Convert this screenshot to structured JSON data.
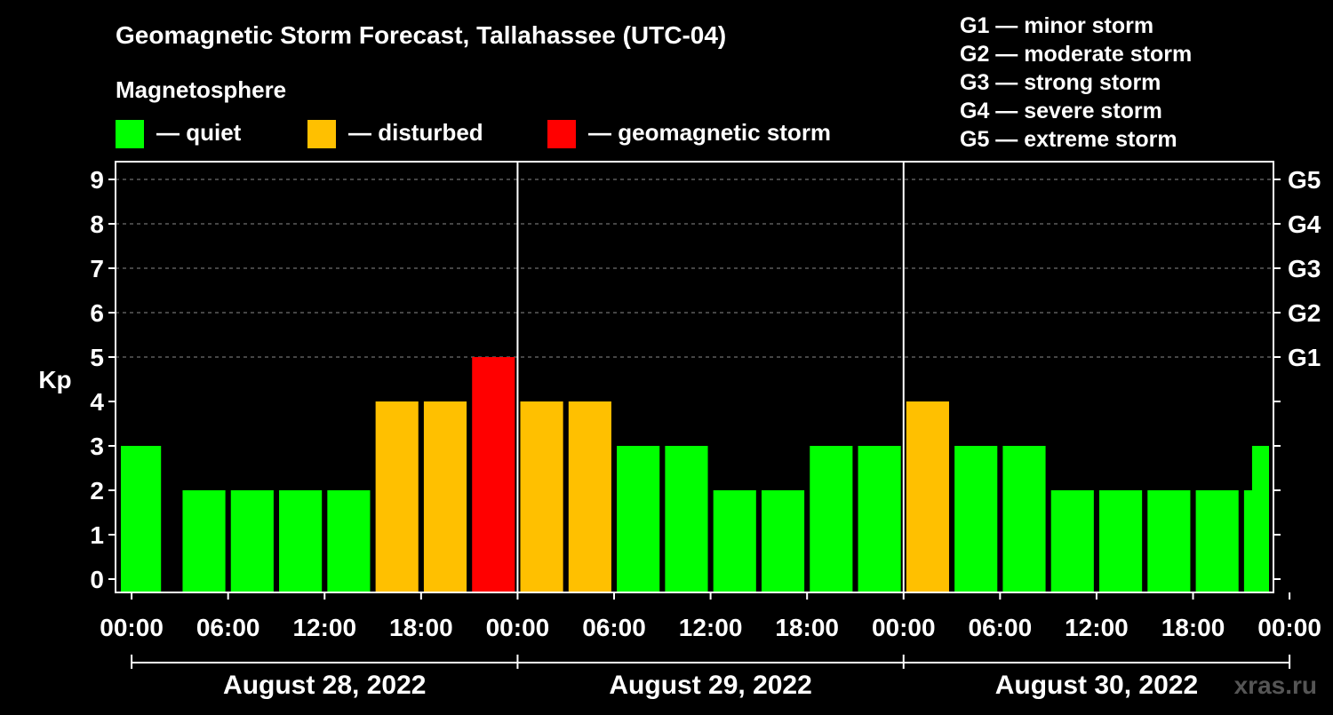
{
  "title": "Geomagnetic Storm Forecast, Tallahassee (UTC-04)",
  "legend": {
    "heading": "Magnetosphere",
    "items": [
      {
        "label": "— quiet",
        "color": "#00FF00"
      },
      {
        "label": "— disturbed",
        "color": "#FFC000"
      },
      {
        "label": "— geomagnetic storm",
        "color": "#FF0000"
      }
    ],
    "g_scale": [
      "G1 — minor storm",
      "G2 — moderate storm",
      "G3 — strong storm",
      "G4 — severe storm",
      "G5 — extreme storm"
    ]
  },
  "watermark": "xras.ru",
  "chart_data": {
    "type": "bar",
    "title": "Geomagnetic Storm Forecast, Tallahassee (UTC-04)",
    "ylabel": "Kp",
    "xlabel": "",
    "ylim": [
      0,
      9
    ],
    "x_range_hours": [
      -1,
      71
    ],
    "bar_width_hours": 2.66,
    "yticks": [
      "0",
      "1",
      "2",
      "3",
      "4",
      "5",
      "6",
      "7",
      "8",
      "9"
    ],
    "right_ticks": [
      {
        "kp": 5,
        "label": "G1"
      },
      {
        "kp": 6,
        "label": "G2"
      },
      {
        "kp": 7,
        "label": "G3"
      },
      {
        "kp": 8,
        "label": "G4"
      },
      {
        "kp": 9,
        "label": "G5"
      }
    ],
    "xticks": [
      {
        "hour": 0,
        "label": "00:00"
      },
      {
        "hour": 6,
        "label": "06:00"
      },
      {
        "hour": 12,
        "label": "12:00"
      },
      {
        "hour": 18,
        "label": "18:00"
      },
      {
        "hour": 24,
        "label": "00:00"
      },
      {
        "hour": 30,
        "label": "06:00"
      },
      {
        "hour": 36,
        "label": "12:00"
      },
      {
        "hour": 42,
        "label": "18:00"
      },
      {
        "hour": 48,
        "label": "00:00"
      },
      {
        "hour": 54,
        "label": "06:00"
      },
      {
        "hour": 60,
        "label": "12:00"
      },
      {
        "hour": 66,
        "label": "18:00"
      },
      {
        "hour": 72,
        "label": "00:00"
      }
    ],
    "day_dividers": [
      24,
      48
    ],
    "days": [
      {
        "label": "August 28, 2022",
        "center_hour": 12
      },
      {
        "label": "August 29, 2022",
        "center_hour": 36
      },
      {
        "label": "August 30, 2022",
        "center_hour": 60
      }
    ],
    "bars": [
      {
        "center_hour": 0.5,
        "kp": 3,
        "level": "quiet"
      },
      {
        "center_hour": 4.5,
        "kp": 2,
        "level": "quiet"
      },
      {
        "center_hour": 7.5,
        "kp": 2,
        "level": "quiet"
      },
      {
        "center_hour": 10.5,
        "kp": 2,
        "level": "quiet"
      },
      {
        "center_hour": 13.5,
        "kp": 2,
        "level": "quiet"
      },
      {
        "center_hour": 16.5,
        "kp": 4,
        "level": "disturbed"
      },
      {
        "center_hour": 19.5,
        "kp": 4,
        "level": "disturbed"
      },
      {
        "center_hour": 22.5,
        "kp": 5,
        "level": "storm"
      },
      {
        "center_hour": 25.5,
        "kp": 4,
        "level": "disturbed"
      },
      {
        "center_hour": 28.5,
        "kp": 4,
        "level": "disturbed"
      },
      {
        "center_hour": 31.5,
        "kp": 3,
        "level": "quiet"
      },
      {
        "center_hour": 34.5,
        "kp": 3,
        "level": "quiet"
      },
      {
        "center_hour": 37.5,
        "kp": 2,
        "level": "quiet"
      },
      {
        "center_hour": 40.5,
        "kp": 2,
        "level": "quiet"
      },
      {
        "center_hour": 43.5,
        "kp": 3,
        "level": "quiet"
      },
      {
        "center_hour": 46.5,
        "kp": 3,
        "level": "quiet"
      },
      {
        "center_hour": 49.5,
        "kp": 4,
        "level": "disturbed"
      },
      {
        "center_hour": 52.5,
        "kp": 3,
        "level": "quiet"
      },
      {
        "center_hour": 55.5,
        "kp": 3,
        "level": "quiet"
      },
      {
        "center_hour": 58.5,
        "kp": 2,
        "level": "quiet"
      },
      {
        "center_hour": 61.5,
        "kp": 2,
        "level": "quiet"
      },
      {
        "center_hour": 64.5,
        "kp": 2,
        "level": "quiet"
      },
      {
        "center_hour": 67.5,
        "kp": 2,
        "level": "quiet"
      },
      {
        "center_hour": 70.5,
        "kp": 2,
        "level": "quiet"
      },
      {
        "center_hour": 71.0,
        "kp": 3,
        "level": "quiet"
      }
    ],
    "level_colors": {
      "quiet": "#00FF00",
      "disturbed": "#FFC000",
      "storm": "#FF0000"
    }
  }
}
